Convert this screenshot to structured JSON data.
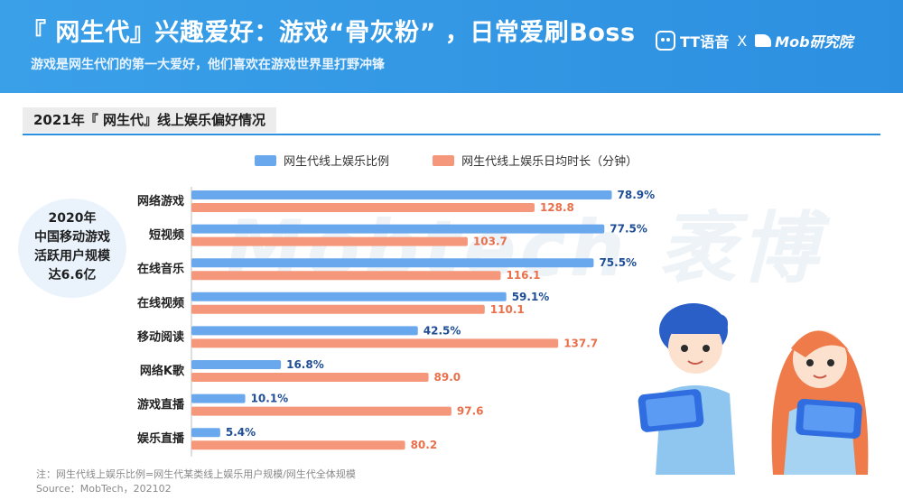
{
  "header": {
    "title": "『 网生代』兴趣爱好：游戏“骨灰粉” ，日常爱刷Boss",
    "subtitle": "游戏是网生代们的第一大爱好，他们喜欢在游戏世界里打野冲锋",
    "brand_left": "TT语音",
    "brand_sep": "X",
    "brand_right": "Mob研究院"
  },
  "section_title": "2021年『 网生代』线上娱乐偏好情况",
  "watermark": "Mobtech 袤博",
  "callout": {
    "line1": "2020年",
    "line2": "中国移动游戏",
    "line3": "活跃用户规模",
    "line4": "达6.6亿"
  },
  "notes": {
    "note": "注：网生代线上娱乐比例=网生代某类线上娱乐用户规模/网生代全体规模",
    "source": "Source：MobTech，202102"
  },
  "colors": {
    "header_bg": "#2d8fe0",
    "series_ratio": "#6aa8ee",
    "series_minutes": "#f5977a",
    "label_ratio": "#1f4e96",
    "label_minutes": "#e9704a"
  },
  "chart_data": {
    "type": "bar",
    "orientation": "horizontal",
    "title": "2021年『 网生代』线上娱乐偏好情况",
    "categories": [
      "网络游戏",
      "短视频",
      "在线音乐",
      "在线视频",
      "移动阅读",
      "网络K歌",
      "游戏直播",
      "娱乐直播"
    ],
    "series": [
      {
        "name": "网生代线上娱乐比例",
        "values": [
          78.9,
          77.5,
          75.5,
          59.1,
          42.5,
          16.8,
          10.1,
          5.4
        ],
        "labels": [
          "78.9%",
          "77.5%",
          "75.5%",
          "59.1%",
          "42.5%",
          "16.8%",
          "10.1%",
          "5.4%"
        ],
        "max": 100
      },
      {
        "name": "网生代线上娱乐日均时长（分钟）",
        "values": [
          128.8,
          103.7,
          116.1,
          110.1,
          137.7,
          89.0,
          97.6,
          80.2
        ],
        "labels": [
          "128.8",
          "103.7",
          "116.1",
          "110.1",
          "137.7",
          "89.0",
          "97.6",
          "80.2"
        ],
        "max": 200
      }
    ],
    "legend_position": "top",
    "grid": false
  }
}
